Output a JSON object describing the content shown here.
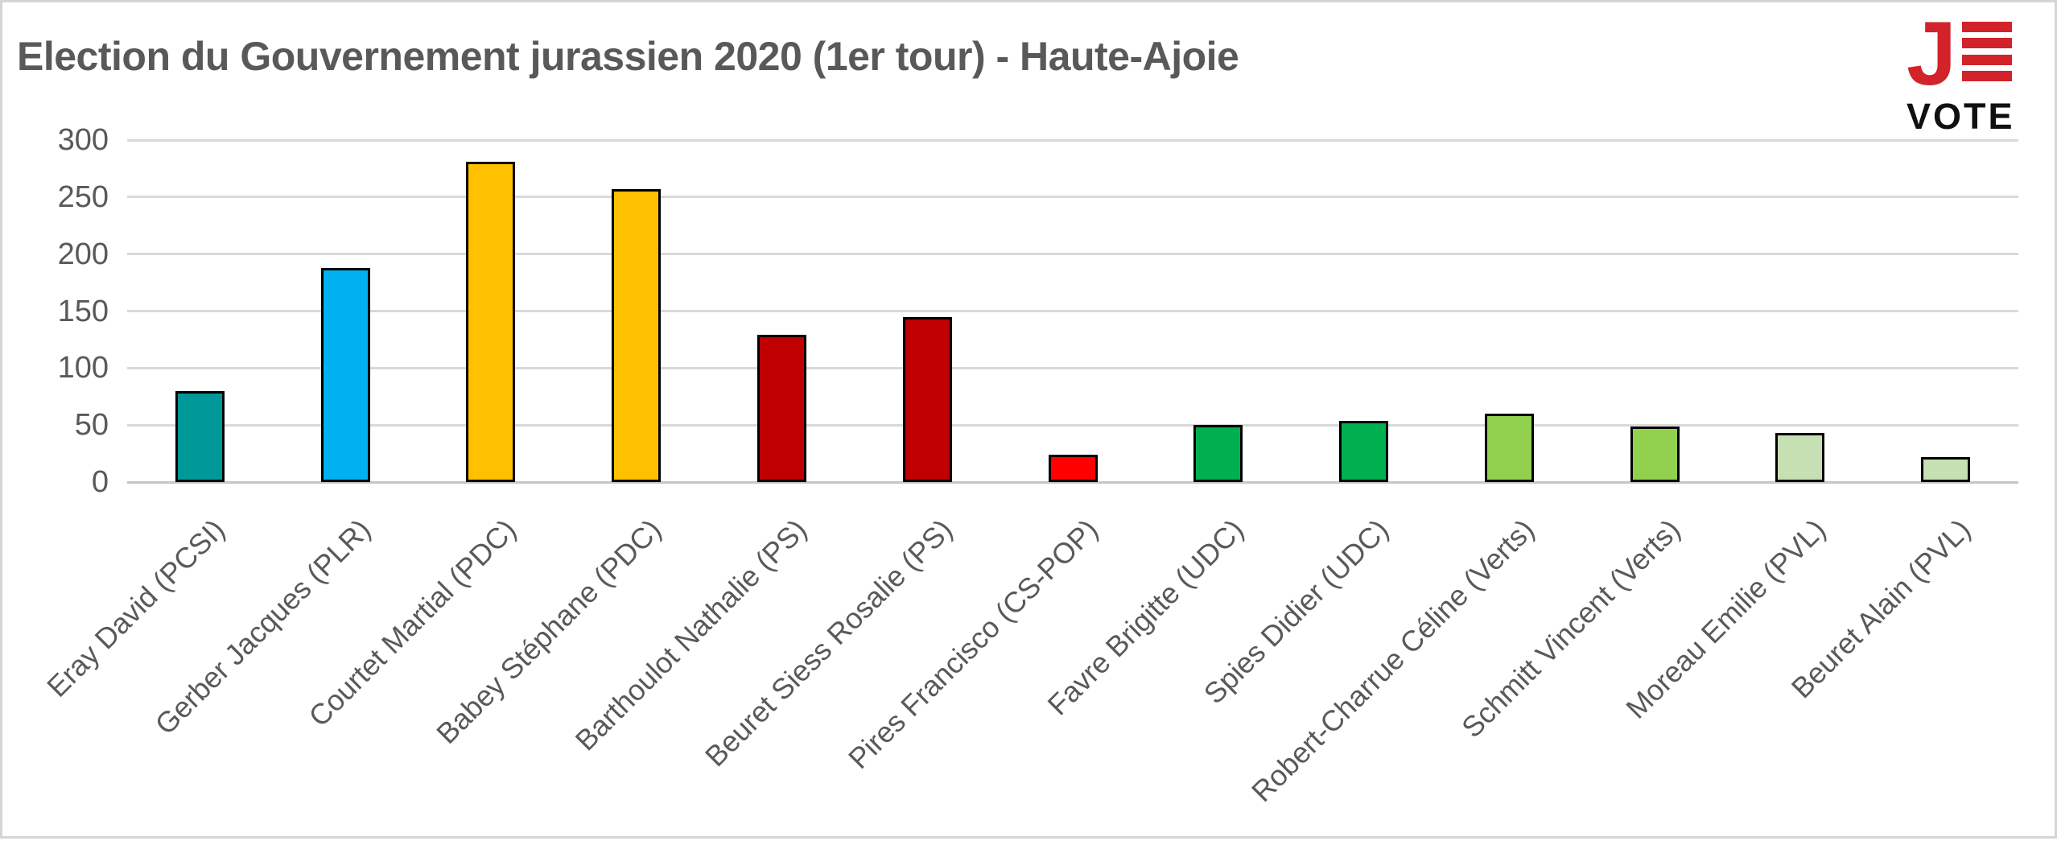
{
  "page": {
    "background": "#FFFFFF",
    "frame_color": "#D5D5D5"
  },
  "logo": {
    "j": "J",
    "vote": "VOTE",
    "red": "#D2232A",
    "text_color": "#101010"
  },
  "chart_data": {
    "type": "bar",
    "title": "Election du Gouvernement jurassien 2020 (1er tour) - Haute-Ajoie",
    "categories": [
      "Eray David (PCSI)",
      "Gerber Jacques (PLR)",
      "Courtet Martial (PDC)",
      "Babey Stéphane (PDC)",
      "Barthoulot Nathalie (PS)",
      "Beuret Siess Rosalie (PS)",
      "Pires Francisco (CS-POP)",
      "Favre Brigitte (UDC)",
      "Spies Didier (UDC)",
      "Robert-Charrue Céline (Verts)",
      "Schmitt Vincent (Verts)",
      "Moreau Emilie (PVL)",
      "Beuret Alain (PVL)"
    ],
    "values": [
      80,
      188,
      281,
      257,
      129,
      145,
      24,
      50,
      54,
      60,
      49,
      43,
      22
    ],
    "colors": [
      "#009998",
      "#00B0F0",
      "#FFC000",
      "#FFC000",
      "#C00000",
      "#C00000",
      "#FF0000",
      "#00B050",
      "#00B050",
      "#92D050",
      "#92D050",
      "#C6E0B4",
      "#C6E0B4"
    ],
    "bar_border_color": "#000000",
    "xlabel": "",
    "ylabel": "",
    "ylim": [
      0,
      300
    ],
    "yticks": [
      0,
      50,
      100,
      150,
      200,
      250,
      300
    ],
    "grid": true,
    "gridline_color": "#D9D9D9",
    "axis_line_color": "#C6C6C6",
    "text_color": "#595959",
    "legend": "none"
  }
}
